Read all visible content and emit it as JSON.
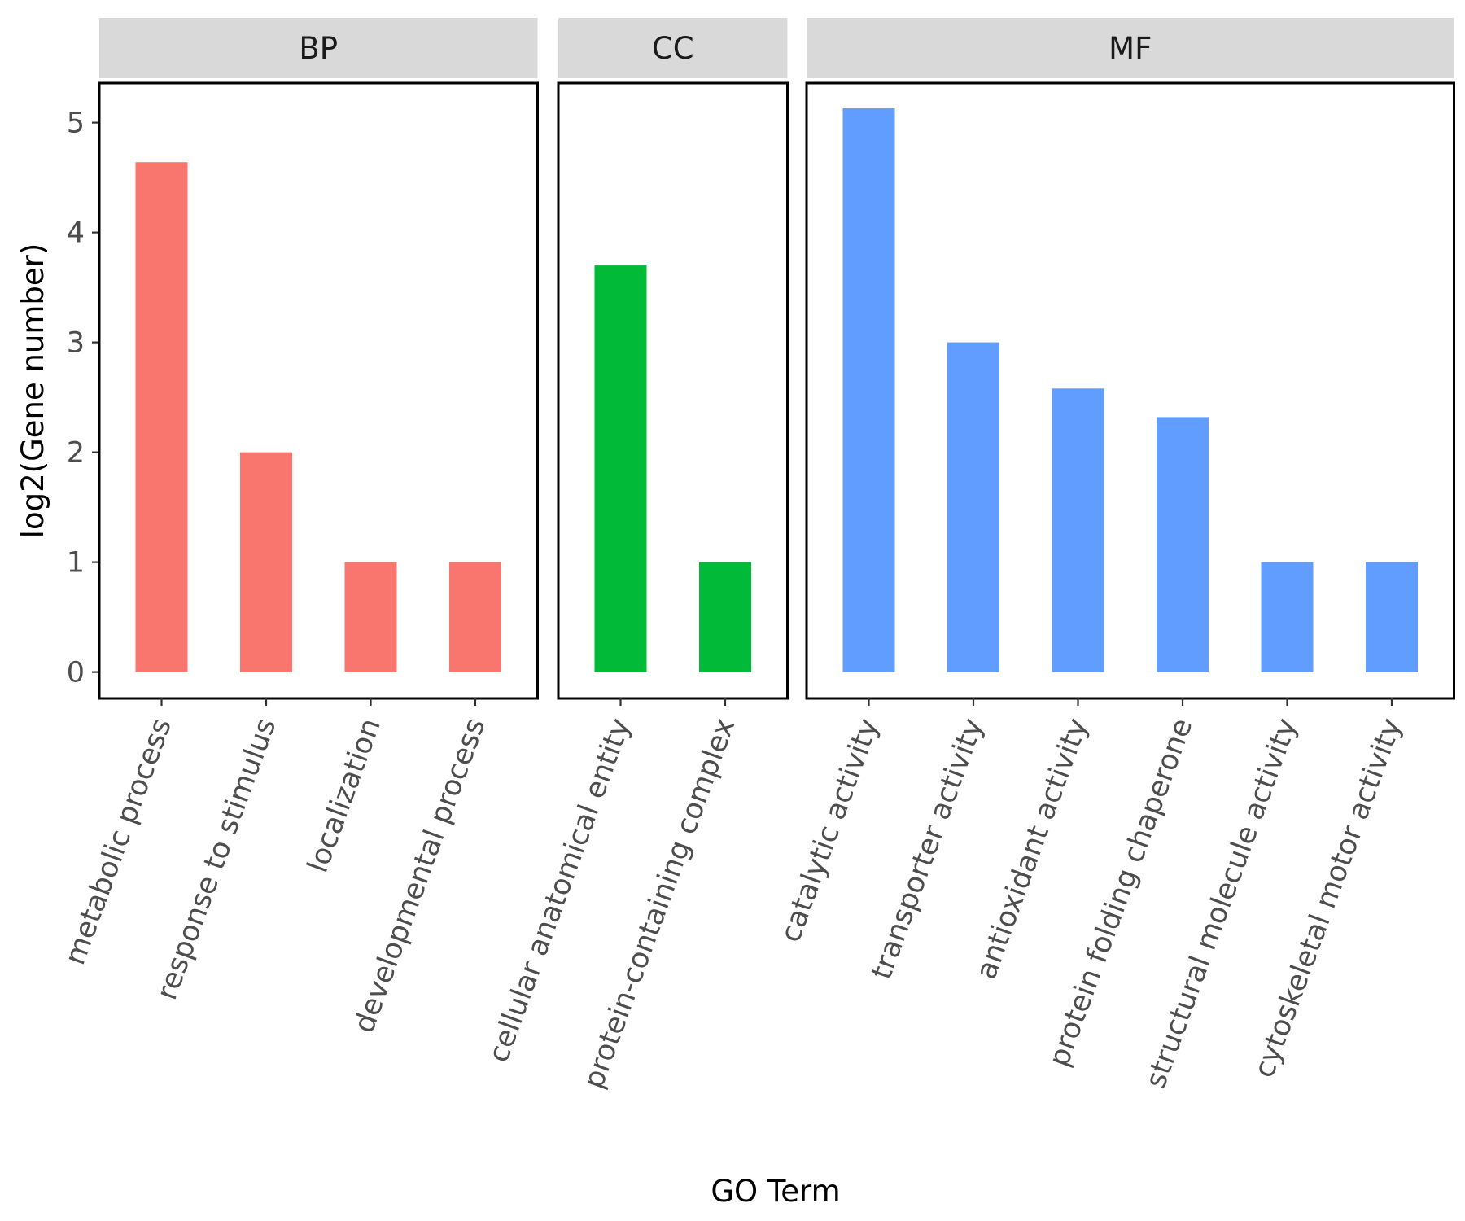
{
  "chart_data": {
    "type": "bar",
    "xlabel": "GO Term",
    "ylabel": "log2(Gene number)",
    "ylim": [
      -0.24,
      5.36
    ],
    "yticks": [
      0,
      1,
      2,
      3,
      4,
      5
    ],
    "panels": [
      {
        "name": "BP",
        "color": "#F8766D",
        "categories": [
          "metabolic process",
          "response to stimulus",
          "localization",
          "developmental process"
        ],
        "values": [
          4.64,
          2.0,
          1.0,
          1.0
        ]
      },
      {
        "name": "CC",
        "color": "#00BA38",
        "categories": [
          "cellular anatomical entity",
          "protein-containing complex"
        ],
        "values": [
          3.7,
          1.0
        ]
      },
      {
        "name": "MF",
        "color": "#619CFF",
        "categories": [
          "catalytic activity",
          "transporter activity",
          "antioxidant activity",
          "protein folding chaperone",
          "structural molecule activity",
          "cytoskeletal motor activity"
        ],
        "values": [
          5.13,
          3.0,
          2.58,
          2.32,
          1.0,
          1.0
        ]
      }
    ]
  }
}
